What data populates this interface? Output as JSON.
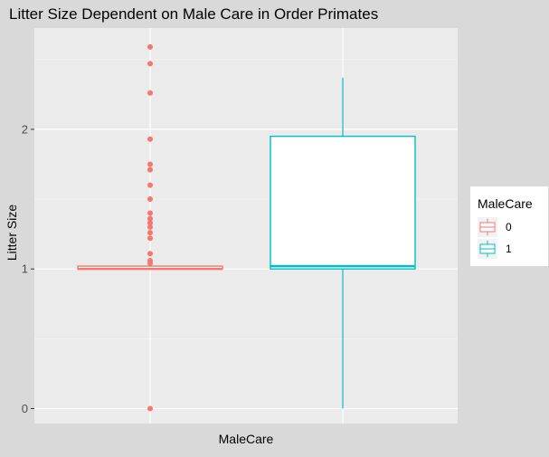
{
  "chart_data": {
    "type": "boxplot",
    "title": "Litter Size Dependent on Male Care in Order Primates",
    "xlabel": "MaleCare",
    "ylabel": "Litter Size",
    "ylim": [
      -0.05,
      2.7
    ],
    "yticks": [
      0,
      1,
      2
    ],
    "grid": true,
    "legend_placement": "right",
    "legend": {
      "title": "MaleCare",
      "entries": [
        {
          "label": "0",
          "color": "#F8766D"
        },
        {
          "label": "1",
          "color": "#00BFC4"
        }
      ]
    },
    "series": [
      {
        "name": "0",
        "color": "#F8766D",
        "box": {
          "lower_whisker": 1.0,
          "q1": 1.0,
          "median": 1.0,
          "q3": 1.02,
          "upper_whisker": 1.02
        },
        "outliers": [
          2.59,
          2.47,
          2.26,
          1.93,
          1.75,
          1.71,
          1.6,
          1.5,
          1.4,
          1.36,
          1.33,
          1.3,
          1.26,
          1.22,
          1.11,
          1.06,
          1.04,
          0.0
        ]
      },
      {
        "name": "1",
        "color": "#00BFC4",
        "box": {
          "lower_whisker": 0.0,
          "q1": 1.0,
          "median": 1.02,
          "q3": 1.95,
          "upper_whisker": 2.37
        },
        "outliers": []
      }
    ]
  }
}
